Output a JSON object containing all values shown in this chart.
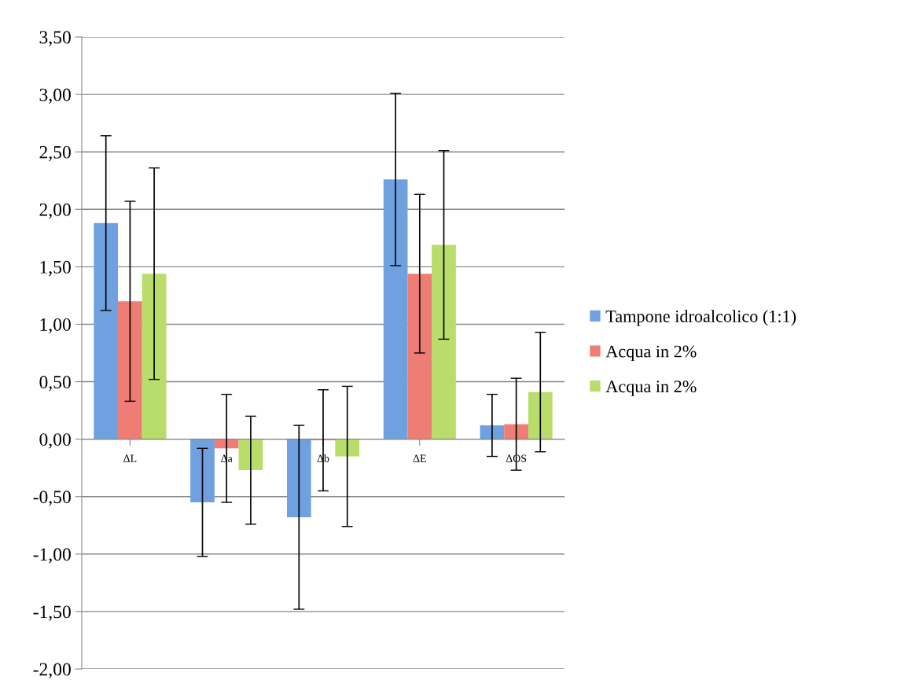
{
  "chart_data": {
    "type": "bar",
    "categories": [
      "ΔL",
      "Δa",
      "Δb",
      "ΔE",
      "ΔOS"
    ],
    "series": [
      {
        "name": "Tampone idroalcolico (1:1)",
        "color": "#6fa0e0",
        "values": [
          1.88,
          -0.55,
          -0.68,
          2.26,
          0.12
        ],
        "errors": [
          0.76,
          0.47,
          0.8,
          0.75,
          0.27
        ]
      },
      {
        "name": "Acqua in 2%",
        "color": "#ee7d76",
        "values": [
          1.2,
          -0.08,
          -0.01,
          1.44,
          0.13
        ],
        "errors": [
          0.87,
          0.47,
          0.44,
          0.69,
          0.4
        ]
      },
      {
        "name": "Acqua in 2%",
        "color": "#b8dd6a",
        "values": [
          1.44,
          -0.27,
          -0.15,
          1.69,
          0.41
        ],
        "errors": [
          0.92,
          0.47,
          0.61,
          0.82,
          0.52
        ]
      }
    ],
    "ylim": [
      -2,
      3.5
    ],
    "yticks": [
      {
        "value": -2,
        "label": "-2,00"
      },
      {
        "value": -1.5,
        "label": "-1,50"
      },
      {
        "value": -1,
        "label": "-1,00"
      },
      {
        "value": -0.5,
        "label": "-0,50"
      },
      {
        "value": 0,
        "label": "0,00"
      },
      {
        "value": 0.5,
        "label": "0,50"
      },
      {
        "value": 1,
        "label": "1,00"
      },
      {
        "value": 1.5,
        "label": "1,50"
      },
      {
        "value": 2,
        "label": "2,00"
      },
      {
        "value": 2.5,
        "label": "2,50"
      },
      {
        "value": 3,
        "label": "3,00"
      },
      {
        "value": 3.5,
        "label": "3,50"
      }
    ],
    "grid": "y",
    "legend": "right"
  }
}
